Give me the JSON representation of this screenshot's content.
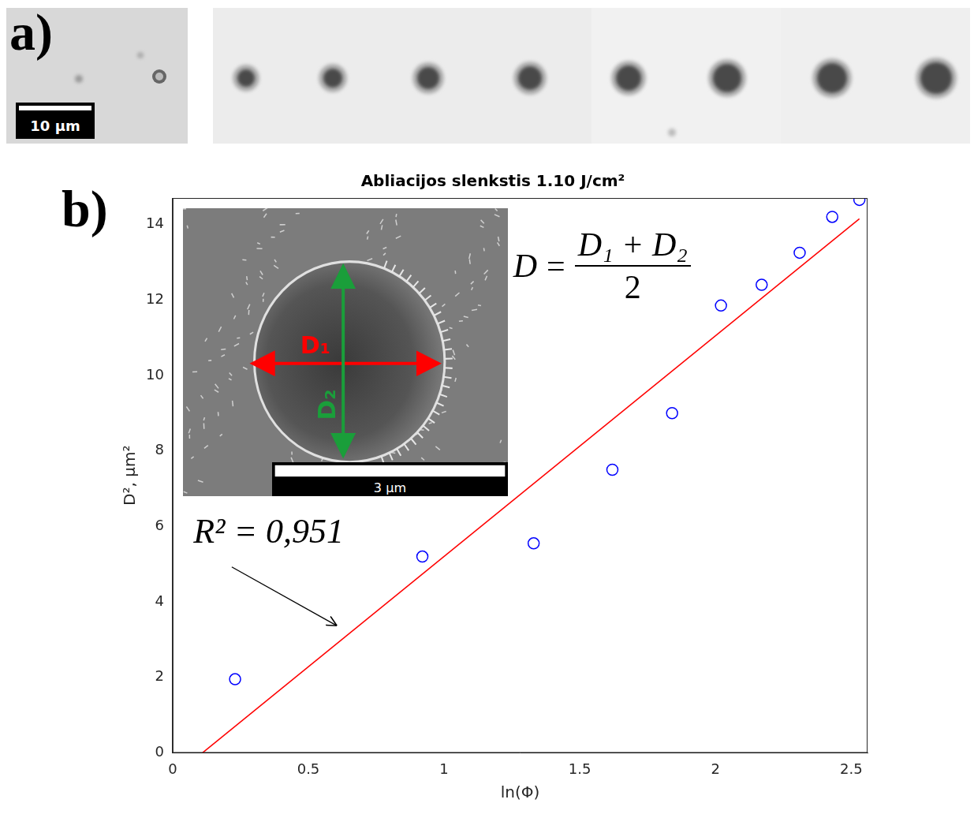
{
  "panels": {
    "a": {
      "label": "a)",
      "scale_bar": "10 μm"
    },
    "b": {
      "label": "b)",
      "inset": {
        "labels": [
          "D₁",
          "D₂"
        ],
        "scale_bar": "3 μm"
      },
      "formula": {
        "lhs": "D",
        "numerator": "D₁ + D₂",
        "denominator": "2"
      }
    }
  },
  "chart_data": {
    "type": "scatter",
    "title": "Abliacijos slenkstis 1.10 J/cm²",
    "x_label": "ln(Φ)",
    "y_label": "D², μm²",
    "xlim": [
      0,
      2.56
    ],
    "ylim": [
      0,
      14.7
    ],
    "xticks": [
      0,
      0.5,
      1,
      1.5,
      2,
      2.5
    ],
    "yticks": [
      0,
      2,
      4,
      6,
      8,
      10,
      12,
      14
    ],
    "grid": false,
    "annotations": [
      "R² = 0,951"
    ],
    "series": [
      {
        "type": "scatter",
        "color": "#0000ff",
        "marker": "circle",
        "x": [
          0.23,
          0.92,
          1.33,
          1.62,
          1.84,
          2.02,
          2.17,
          2.31,
          2.43,
          2.53
        ],
        "values": [
          1.95,
          5.2,
          5.55,
          7.5,
          9.0,
          11.85,
          12.4,
          13.25,
          14.2,
          14.65
        ]
      },
      {
        "type": "line",
        "color": "#ff0000",
        "line_style": "solid",
        "x": [
          0.11,
          2.53
        ],
        "values": [
          0,
          14.15
        ]
      }
    ]
  }
}
